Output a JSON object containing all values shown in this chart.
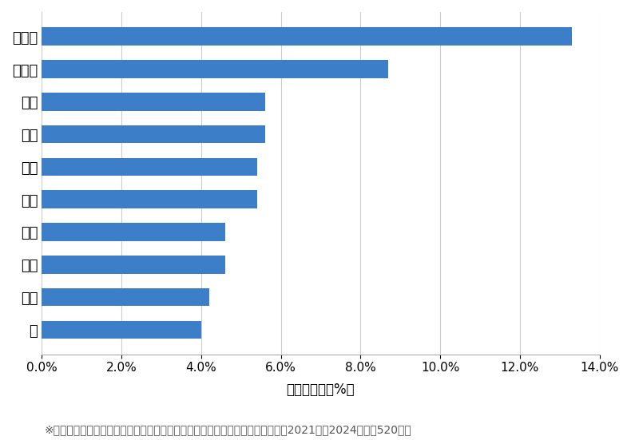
{
  "categories": [
    "緑",
    "押上",
    "太平",
    "立花",
    "向島",
    "石原",
    "錦糸",
    "八広",
    "東向島",
    "江東橋"
  ],
  "values": [
    4.0,
    4.2,
    4.6,
    4.6,
    5.4,
    5.4,
    5.6,
    5.6,
    8.7,
    13.3
  ],
  "bar_color": "#3d7ec8",
  "xlim": [
    0,
    14.0
  ],
  "xticks": [
    0,
    2,
    4,
    6,
    8,
    10,
    12,
    14
  ],
  "xlabel": "件数の割合（%）",
  "footnote": "※弊社受付の案件を対象に、受付時に市区町村の回答があったものを集計（期間2021年～2024年、計520件）",
  "background_color": "#ffffff",
  "grid_color": "#cccccc",
  "bar_height": 0.55,
  "label_fontsize": 13,
  "tick_fontsize": 11,
  "xlabel_fontsize": 12,
  "footnote_fontsize": 10
}
